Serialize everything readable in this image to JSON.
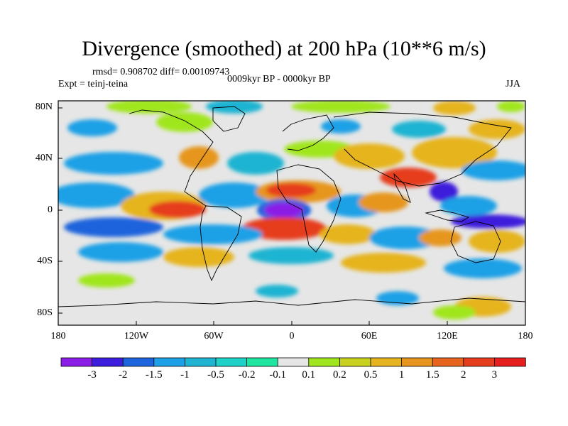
{
  "header": {
    "title": "Divergence (smoothed) at 200 hPa (10**6 m/s)",
    "stats": "rmsd= 0.908702 diff= 0.00109743",
    "period": "0009kyr BP - 0000kyr BP",
    "experiment": "Expt = teinj-teina",
    "season": "JJA"
  },
  "axes": {
    "y_ticks": [
      "80N",
      "40N",
      "0",
      "40S",
      "80S"
    ],
    "x_ticks": [
      "180",
      "120W",
      "60W",
      "0",
      "60E",
      "120E",
      "180"
    ]
  },
  "colorbar": {
    "labels": [
      "-3",
      "-2",
      "-1.5",
      "-1",
      "-0.5",
      "-0.2",
      "-0.1",
      "0.1",
      "0.2",
      "0.5",
      "1",
      "1.5",
      "2",
      "3"
    ],
    "colors": [
      "#8a1ee6",
      "#3c1edc",
      "#1e64dc",
      "#1ea0e6",
      "#1eb4d2",
      "#1ed2c8",
      "#1ee6a0",
      "#e6e6e6",
      "#a0e61e",
      "#c8d21e",
      "#e6b41e",
      "#e6961e",
      "#e6641e",
      "#e63c1e",
      "#e61e1e"
    ]
  }
}
